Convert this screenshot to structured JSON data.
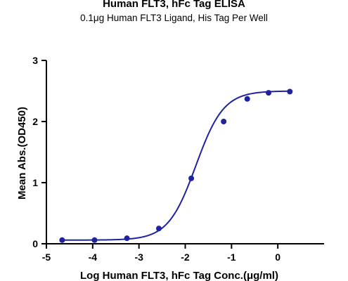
{
  "chart_data": {
    "type": "scatter",
    "title": "Human FLT3, hFc Tag ELISA",
    "subtitle": "0.1μg Human FLT3 Ligand, His Tag Per Well",
    "xlabel": "Log Human FLT3, hFc Tag Conc.(μg/ml)",
    "ylabel": "Mean Abs.(OD450)",
    "xlim": [
      -5,
      1
    ],
    "ylim": [
      0,
      3
    ],
    "xticks": [
      "-5",
      "-4",
      "-3",
      "-2",
      "-1",
      "0"
    ],
    "yticks": [
      "0",
      "1",
      "2",
      "3"
    ],
    "grid": false,
    "legend": "none",
    "series": [
      {
        "x": [
          -4.66,
          -3.96,
          -3.26,
          -2.57,
          -1.87,
          -1.17,
          -0.66,
          -0.2,
          0.26
        ],
        "y": [
          0.06,
          0.06,
          0.09,
          0.25,
          1.07,
          2.0,
          2.37,
          2.47,
          2.49
        ],
        "marker": "circle",
        "fit": "four-parameter logistic curve",
        "color": "#1f23a0"
      }
    ]
  }
}
